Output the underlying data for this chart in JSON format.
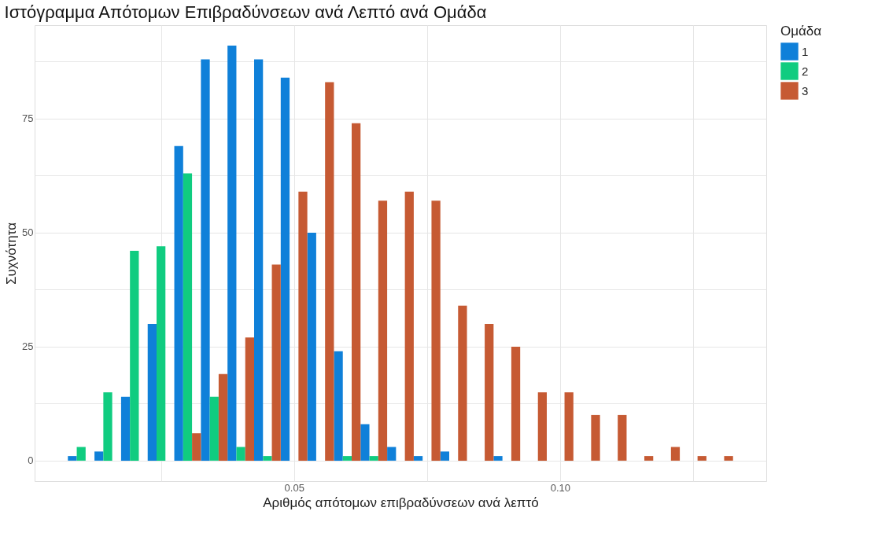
{
  "chart_data": {
    "type": "histogram",
    "title": "Ιστόγραμμα Απότομων Επιβραδύνσεων ανά Λεπτό ανά Ομάδα",
    "xlabel": "Αριθμός απότομων επιβραδύνσεων ανά λεπτό",
    "ylabel": "Συχνότητα",
    "legend_title": "Ομάδα",
    "bins": [
      0.0075,
      0.0125,
      0.0175,
      0.0225,
      0.0275,
      0.0325,
      0.0375,
      0.0425,
      0.0475,
      0.0525,
      0.0575,
      0.0625,
      0.0675,
      0.0725,
      0.0775,
      0.0825,
      0.0875,
      0.0925,
      0.0975,
      0.1025,
      0.1075,
      0.1125,
      0.1175,
      0.1225,
      0.1275,
      0.1325
    ],
    "series": [
      {
        "name": "1",
        "color": "#0f80d9",
        "values": [
          1,
          2,
          14,
          30,
          69,
          88,
          91,
          88,
          84,
          50,
          24,
          8,
          3,
          1,
          2,
          0,
          1,
          0,
          0,
          0,
          0,
          0,
          0,
          0,
          0
        ]
      },
      {
        "name": "2",
        "color": "#10cc80",
        "values": [
          3,
          15,
          46,
          47,
          63,
          14,
          3,
          1,
          0,
          0,
          1,
          1,
          0,
          0,
          0,
          0,
          0,
          0,
          0,
          0,
          0,
          0,
          0,
          0,
          0
        ]
      },
      {
        "name": "3",
        "color": "#c65a33",
        "values": [
          0,
          0,
          0,
          0,
          6,
          19,
          27,
          43,
          59,
          83,
          74,
          57,
          59,
          57,
          34,
          30,
          25,
          15,
          15,
          10,
          10,
          1,
          3,
          1,
          1
        ]
      }
    ],
    "xlim": [
      0.00125,
      0.13875
    ],
    "xticks": [
      {
        "value": 0.025,
        "label": null
      },
      {
        "value": 0.05,
        "label": "0.05"
      },
      {
        "value": 0.075,
        "label": null
      },
      {
        "value": 0.1,
        "label": "0.10"
      },
      {
        "value": 0.125,
        "label": null
      }
    ],
    "ylim": [
      -4.5,
      95.5
    ],
    "yticks": [
      0,
      {
        "value": 12.5,
        "label": null
      },
      25,
      {
        "value": 37.5,
        "label": null
      },
      50,
      {
        "value": 62.5,
        "label": null
      },
      75,
      {
        "value": 87.5,
        "label": null
      }
    ],
    "grid": true,
    "legend": "right"
  }
}
